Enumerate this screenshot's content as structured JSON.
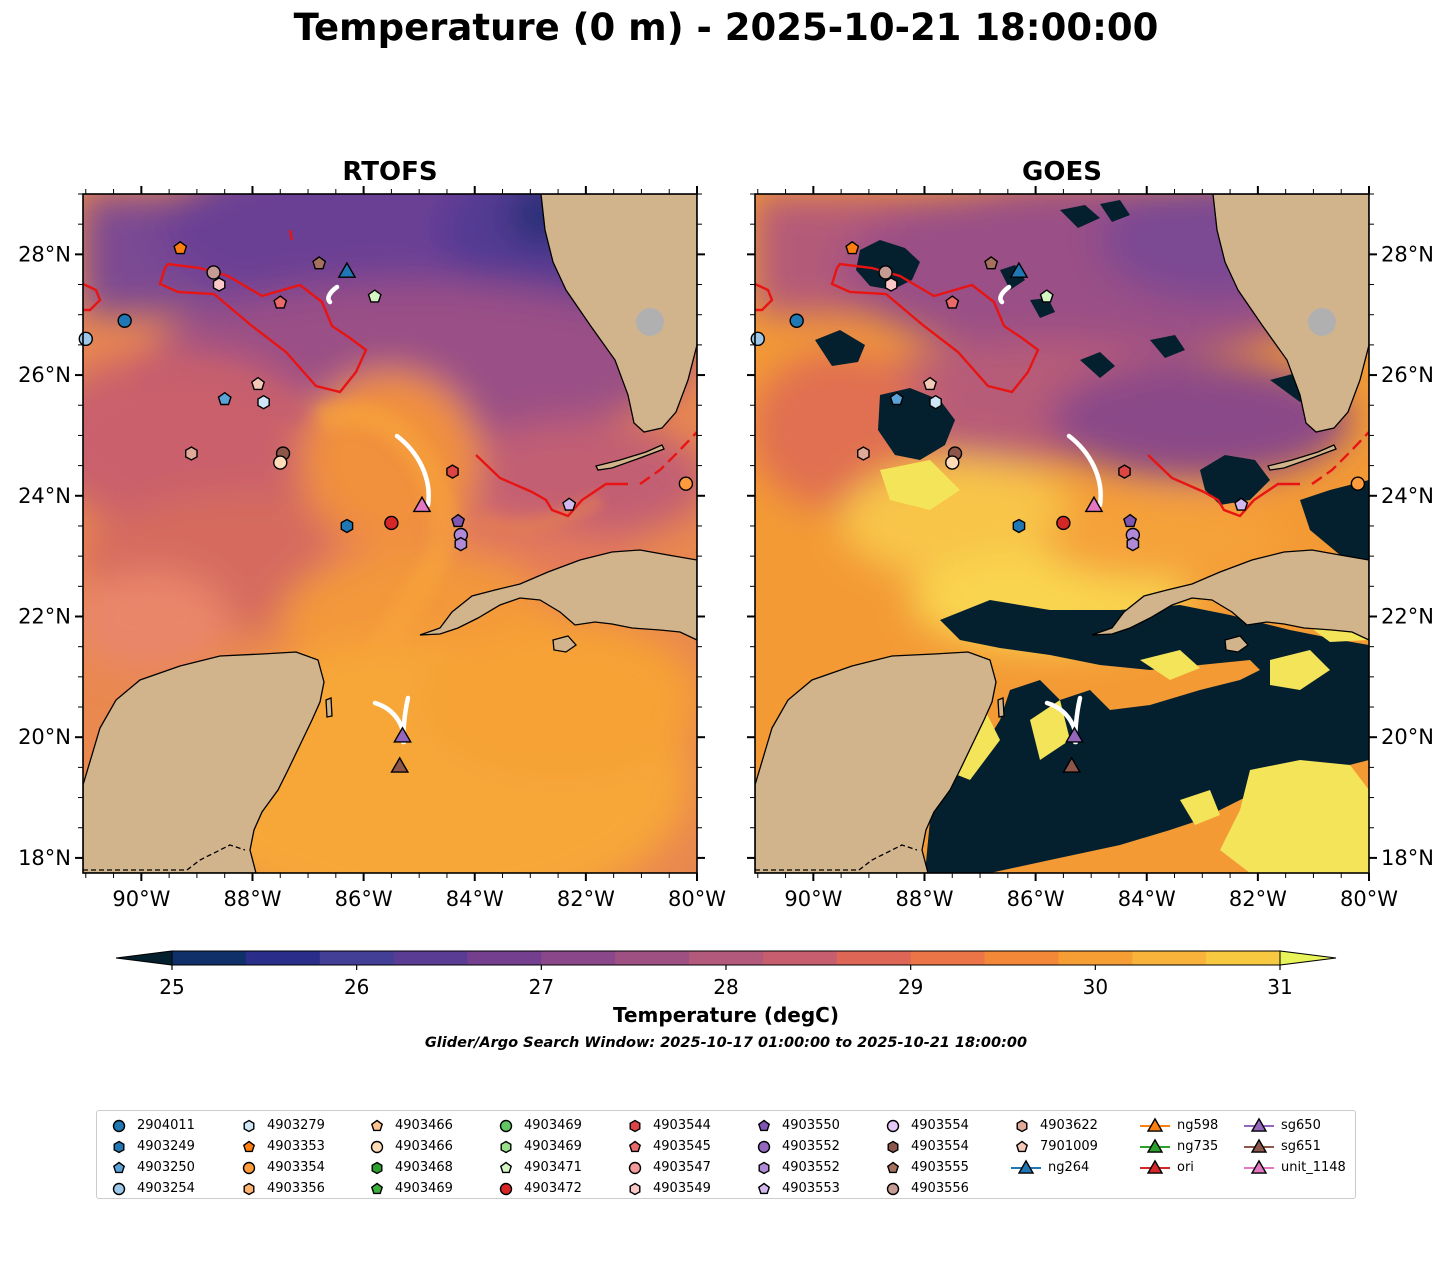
{
  "title": "Temperature (0 m) - 2025-10-21 18:00:00",
  "panels": [
    {
      "title": "RTOFS"
    },
    {
      "title": "GOES"
    }
  ],
  "axes": {
    "lon_ticks": [
      "90°W",
      "88°W",
      "86°W",
      "84°W",
      "82°W",
      "80°W"
    ],
    "lat_ticks": [
      "28°N",
      "26°N",
      "24°N",
      "22°N",
      "20°N",
      "18°N"
    ]
  },
  "colorbar": {
    "label": "Temperature (degC)",
    "ticks": [
      "25",
      "26",
      "27",
      "28",
      "29",
      "30",
      "31"
    ],
    "colors": [
      "#04202f",
      "#10306a",
      "#2b2d8a",
      "#433f96",
      "#5a3c94",
      "#733f8e",
      "#8a478a",
      "#9f5083",
      "#b3597c",
      "#c75e6f",
      "#dd6656",
      "#ec7547",
      "#f38838",
      "#f69d34",
      "#f9b23a",
      "#f7c940",
      "#e8f45a"
    ]
  },
  "search_window": "Glider/Argo Search Window: 2025-10-17 01:00:00 to 2025-10-21 18:00:00",
  "legend": {
    "columns": [
      [
        {
          "label": "2904011",
          "shape": "circle",
          "color": "#1f77b4"
        },
        {
          "label": "4903249",
          "shape": "hexagon",
          "color": "#1f77b4"
        },
        {
          "label": "4903250",
          "shape": "pentagon",
          "color": "#5aa2d8"
        },
        {
          "label": "4903254",
          "shape": "circle",
          "color": "#9ec8ea"
        }
      ],
      [
        {
          "label": "4903279",
          "shape": "hexagon",
          "color": "#cfe6f7"
        },
        {
          "label": "4903353",
          "shape": "pentagon",
          "color": "#ff7f0e"
        },
        {
          "label": "4903354",
          "shape": "circle",
          "color": "#ff9a3d"
        },
        {
          "label": "4903356",
          "shape": "hexagon",
          "color": "#ffb36e"
        }
      ],
      [
        {
          "label": "4903466",
          "shape": "pentagon",
          "color": "#ffc58e"
        },
        {
          "label": "4903466",
          "shape": "circle",
          "color": "#ffdcb8"
        },
        {
          "label": "4903468",
          "shape": "hexagon",
          "color": "#2ca02c"
        },
        {
          "label": "4903469",
          "shape": "pentagon",
          "color": "#3cb03c"
        }
      ],
      [
        {
          "label": "4903469",
          "shape": "circle",
          "color": "#62c462"
        },
        {
          "label": "4903469",
          "shape": "hexagon",
          "color": "#98df8a"
        },
        {
          "label": "4903471",
          "shape": "pentagon",
          "color": "#d4f5c4"
        },
        {
          "label": "4903472",
          "shape": "circle",
          "color": "#d62728"
        }
      ],
      [
        {
          "label": "4903544",
          "shape": "hexagon",
          "color": "#dd4444"
        },
        {
          "label": "4903545",
          "shape": "pentagon",
          "color": "#e86a6a"
        },
        {
          "label": "4903547",
          "shape": "circle",
          "color": "#f29a9a"
        },
        {
          "label": "4903549",
          "shape": "hexagon",
          "color": "#fac8c8"
        }
      ],
      [
        {
          "label": "4903550",
          "shape": "pentagon",
          "color": "#7f56b2"
        },
        {
          "label": "4903552",
          "shape": "circle",
          "color": "#9467bd"
        },
        {
          "label": "4903552",
          "shape": "hexagon",
          "color": "#b08ad6"
        },
        {
          "label": "4903553",
          "shape": "pentagon",
          "color": "#d3b8ef"
        }
      ],
      [
        {
          "label": "4903554",
          "shape": "circle",
          "color": "#e4c8f8"
        },
        {
          "label": "4903554",
          "shape": "hexagon",
          "color": "#8c564b"
        },
        {
          "label": "4903555",
          "shape": "pentagon",
          "color": "#a6705f"
        },
        {
          "label": "4903556",
          "shape": "circle",
          "color": "#c49c94"
        }
      ],
      [
        {
          "label": "4903622",
          "shape": "hexagon",
          "color": "#e0aa98"
        },
        {
          "label": "7901009",
          "shape": "pentagon",
          "color": "#f5c9b8"
        },
        {
          "label": "ng264",
          "shape": "triangle-line",
          "color": "#1f77b4"
        }
      ],
      [
        {
          "label": "ng598",
          "shape": "triangle-line",
          "color": "#ff7f0e"
        },
        {
          "label": "ng735",
          "shape": "triangle-line",
          "color": "#2ca02c"
        },
        {
          "label": "ori",
          "shape": "triangle-line",
          "color": "#d62728"
        }
      ],
      [
        {
          "label": "sg650",
          "shape": "triangle-line",
          "color": "#9467bd"
        },
        {
          "label": "sg651",
          "shape": "triangle-line",
          "color": "#8c564b"
        },
        {
          "label": "unit_1148",
          "shape": "triangle-line",
          "color": "#e377c2"
        }
      ]
    ]
  },
  "markers": [
    {
      "lon": -90.3,
      "lat": 26.9,
      "shape": "circle",
      "color": "#1f77b4"
    },
    {
      "lon": -91.0,
      "lat": 26.6,
      "shape": "circle",
      "color": "#9ec8ea"
    },
    {
      "lon": -89.3,
      "lat": 28.1,
      "shape": "pentagon",
      "color": "#ff7f0e"
    },
    {
      "lon": -88.7,
      "lat": 27.7,
      "shape": "circle",
      "color": "#c49c94"
    },
    {
      "lon": -88.6,
      "lat": 27.5,
      "shape": "hexagon",
      "color": "#fac8c8"
    },
    {
      "lon": -87.5,
      "lat": 27.2,
      "shape": "pentagon",
      "color": "#e86a6a"
    },
    {
      "lon": -86.8,
      "lat": 27.85,
      "shape": "pentagon",
      "color": "#a6705f"
    },
    {
      "lon": -86.3,
      "lat": 27.7,
      "shape": "triangle",
      "color": "#1f77b4"
    },
    {
      "lon": -85.8,
      "lat": 27.3,
      "shape": "pentagon",
      "color": "#d4f5c4"
    },
    {
      "lon": -87.9,
      "lat": 25.85,
      "shape": "pentagon",
      "color": "#f5c9b8"
    },
    {
      "lon": -88.5,
      "lat": 25.6,
      "shape": "pentagon",
      "color": "#5aa2d8"
    },
    {
      "lon": -87.8,
      "lat": 25.55,
      "shape": "hexagon",
      "color": "#cfe6f7"
    },
    {
      "lon": -89.1,
      "lat": 24.7,
      "shape": "hexagon",
      "color": "#e0aa98"
    },
    {
      "lon": -87.45,
      "lat": 24.7,
      "shape": "circle",
      "color": "#8c564b"
    },
    {
      "lon": -87.5,
      "lat": 24.55,
      "shape": "circle",
      "color": "#ffdcb8"
    },
    {
      "lon": -84.4,
      "lat": 24.4,
      "shape": "hexagon",
      "color": "#dd4444"
    },
    {
      "lon": -86.3,
      "lat": 23.5,
      "shape": "hexagon",
      "color": "#1f77b4"
    },
    {
      "lon": -85.5,
      "lat": 23.55,
      "shape": "circle",
      "color": "#d62728"
    },
    {
      "lon": -84.95,
      "lat": 23.82,
      "shape": "triangle",
      "color": "#e377c2"
    },
    {
      "lon": -84.3,
      "lat": 23.58,
      "shape": "pentagon",
      "color": "#7f56b2"
    },
    {
      "lon": -84.25,
      "lat": 23.35,
      "shape": "circle",
      "color": "#b08ad6"
    },
    {
      "lon": -84.25,
      "lat": 23.2,
      "shape": "hexagon",
      "color": "#b08ad6"
    },
    {
      "lon": -82.3,
      "lat": 23.85,
      "shape": "pentagon",
      "color": "#d3b8ef"
    },
    {
      "lon": -80.2,
      "lat": 24.2,
      "shape": "circle",
      "color": "#ff9a3d"
    },
    {
      "lon": -85.3,
      "lat": 20.0,
      "shape": "triangle",
      "color": "#9467bd"
    },
    {
      "lon": -85.35,
      "lat": 19.5,
      "shape": "triangle",
      "color": "#8c564b"
    }
  ]
}
